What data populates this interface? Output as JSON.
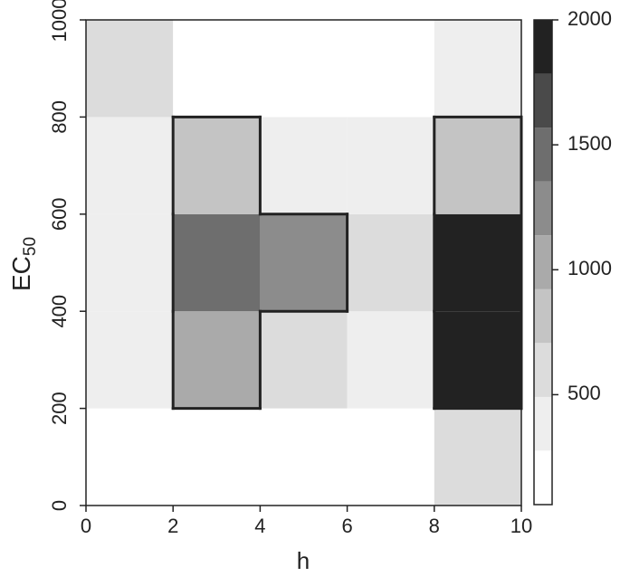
{
  "chart_data": {
    "type": "heatmap",
    "xlabel": "h",
    "ylabel": "EC",
    "ylabel_subscript": "50",
    "x": [
      0,
      2,
      4,
      6,
      8,
      10
    ],
    "y": [
      0,
      200,
      400,
      600,
      800,
      1000
    ],
    "z": [
      [
        150,
        150,
        150,
        150,
        600
      ],
      [
        380,
        1030,
        600,
        380,
        1900
      ],
      [
        380,
        1460,
        1250,
        600,
        1900
      ],
      [
        380,
        820,
        380,
        380,
        820
      ],
      [
        600,
        150,
        150,
        150,
        380
      ]
    ],
    "xlim": [
      0,
      10
    ],
    "xticks": [
      0,
      2,
      4,
      6,
      8,
      10
    ],
    "ylim": [
      0,
      1000
    ],
    "yticks": [
      0,
      200,
      400,
      600,
      800,
      1000
    ],
    "levels": [
      60,
      276,
      491,
      707,
      922,
      1138,
      1353,
      1569,
      1784,
      2000
    ],
    "colors": [
      "#ffffff",
      "#eeeeee",
      "#dcdcdc",
      "#c4c4c4",
      "#aaaaaa",
      "#8c8c8c",
      "#6e6e6e",
      "#4a4a4a",
      "#222222"
    ],
    "colorbar_ticks": [
      500,
      1000,
      1500,
      2000
    ],
    "outlined_cells": [
      [
        2,
        200
      ],
      [
        2,
        400
      ],
      [
        2,
        600
      ],
      [
        4,
        400
      ],
      [
        8,
        200
      ],
      [
        8,
        400
      ],
      [
        8,
        600
      ]
    ]
  }
}
